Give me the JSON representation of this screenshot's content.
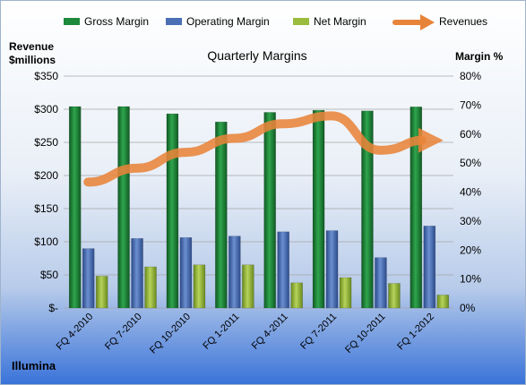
{
  "chart_data": {
    "type": "bar",
    "title": "Quarterly Margins",
    "footer_label": "Illumina",
    "y_left_label_line1": "Revenue",
    "y_left_label_line2": "$millions",
    "y_right_label": "Margin %",
    "categories": [
      "FQ 4-2010",
      "FQ 7-2010",
      "FQ 10-2010",
      "FQ 1-2011",
      "FQ 4-2011",
      "FQ 7-2011",
      "FQ 10-2011",
      "FQ 1-2012"
    ],
    "ylim_left": [
      0,
      350
    ],
    "ylim_right": [
      0,
      80
    ],
    "left_ticks": [
      "$-",
      "$50",
      "$100",
      "$150",
      "$200",
      "$250",
      "$300",
      "$350"
    ],
    "right_ticks": [
      "0%",
      "10%",
      "20%",
      "30%",
      "40%",
      "50%",
      "60%",
      "70%",
      "80%"
    ],
    "grid": true,
    "legend_position": "top",
    "series": [
      {
        "name": "Gross Margin",
        "axis": "right",
        "color": "#1e8a3c",
        "values": [
          69.5,
          69.5,
          67.0,
          64.2,
          67.5,
          68.2,
          68.0,
          69.4
        ]
      },
      {
        "name": "Operating Margin",
        "axis": "right",
        "color": "#4a6fb5",
        "values": [
          20.5,
          24.0,
          24.3,
          24.8,
          26.3,
          26.7,
          17.4,
          28.3
        ]
      },
      {
        "name": "Net Margin",
        "axis": "right",
        "color": "#9bbb3c",
        "values": [
          11.0,
          14.2,
          14.9,
          14.9,
          8.7,
          10.5,
          8.5,
          4.5
        ]
      },
      {
        "name": "Revenues",
        "axis": "left",
        "type": "line",
        "color": "#e8843a",
        "values": [
          190,
          211,
          235,
          256,
          278,
          290,
          238,
          253
        ]
      }
    ]
  }
}
